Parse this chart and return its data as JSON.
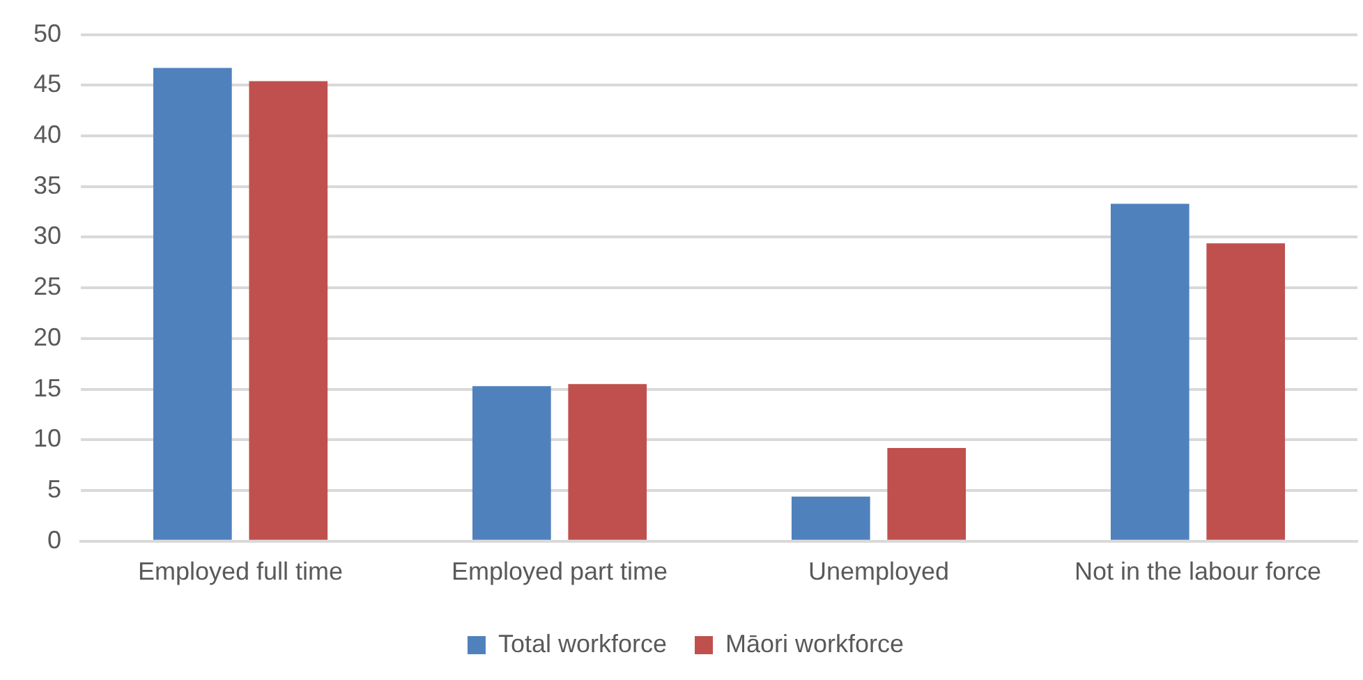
{
  "chart_data": {
    "type": "bar",
    "categories": [
      "Employed full time",
      "Employed part time",
      "Unemployed",
      "Not in the labour force"
    ],
    "series": [
      {
        "name": "Total workforce",
        "color": "#4f81bd",
        "values": [
          46.7,
          15.3,
          4.4,
          33.3
        ]
      },
      {
        "name": "Māori workforce",
        "color": "#c0504d",
        "values": [
          45.4,
          15.5,
          9.2,
          29.4
        ]
      }
    ],
    "ylim": [
      0,
      50
    ],
    "yticks": [
      0,
      5,
      10,
      15,
      20,
      25,
      30,
      35,
      40,
      45,
      50
    ],
    "grid": "y",
    "legend": "bottom"
  }
}
